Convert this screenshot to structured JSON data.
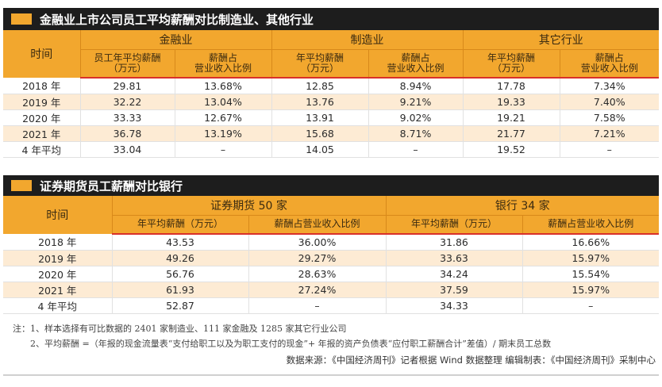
{
  "table1": {
    "title": "金融业上市公司员工平均薪酬对比制造业、其他行业",
    "corner": "时间",
    "groups": [
      "金融业",
      "制造业",
      "其它行业"
    ],
    "subheaders": [
      [
        "员工年平均薪酬",
        "（万元）"
      ],
      [
        "薪酬占",
        "营业收入比例"
      ],
      [
        "年平均薪酬",
        "（万元）"
      ],
      [
        "薪酬占",
        "营业收入比例"
      ],
      [
        "年平均薪酬",
        "（万元）"
      ],
      [
        "薪酬占",
        "营业收入比例"
      ]
    ],
    "rows": [
      [
        "2018 年",
        "29.81",
        "13.68%",
        "12.85",
        "8.94%",
        "17.78",
        "7.34%"
      ],
      [
        "2019 年",
        "32.22",
        "13.04%",
        "13.76",
        "9.21%",
        "19.33",
        "7.40%"
      ],
      [
        "2020 年",
        "33.33",
        "12.67%",
        "13.91",
        "9.02%",
        "19.21",
        "7.58%"
      ],
      [
        "2021 年",
        "36.78",
        "13.19%",
        "15.68",
        "8.71%",
        "21.77",
        "7.21%"
      ],
      [
        "4 年平均",
        "33.04",
        "–",
        "14.05",
        "–",
        "19.52",
        "–"
      ]
    ]
  },
  "table2": {
    "title": "证券期货员工薪酬对比银行",
    "corner": "时间",
    "groups": [
      "证券期货 50 家",
      "银行 34 家"
    ],
    "subheaders": [
      "年平均薪酬（万元）",
      "薪酬占营业收入比例",
      "年平均薪酬（万元）",
      "薪酬占营业收入比例"
    ],
    "rows": [
      [
        "2018 年",
        "43.53",
        "36.00%",
        "31.86",
        "16.66%"
      ],
      [
        "2019 年",
        "49.26",
        "29.27%",
        "33.63",
        "15.97%"
      ],
      [
        "2020 年",
        "56.76",
        "28.63%",
        "34.24",
        "15.54%"
      ],
      [
        "2021 年",
        "61.93",
        "27.24%",
        "37.59",
        "15.97%"
      ],
      [
        "4 年平均",
        "52.87",
        "–",
        "34.33",
        "–"
      ]
    ]
  },
  "notes": {
    "line1": "注：1、样本选择有可比数据的 2401 家制造业、111 家金融及 1285 家其它行业公司",
    "line2": "2、平均薪酬 =（年报的现金流量表“支付给职工以及为职工支付的现金”+ 年报的资产负债表“应付职工薪酬合计”差值）/ 期末员工总数"
  },
  "source": "数据来源：《中国经济周刊》记者根据 Wind 数据整理    编辑制表：《中国经济周刊》采制中心",
  "colors": {
    "accent": "#f2a72e",
    "stripe": "#fdebd4",
    "title_bar": "#1d1d1d",
    "rule": "#d9302a"
  }
}
